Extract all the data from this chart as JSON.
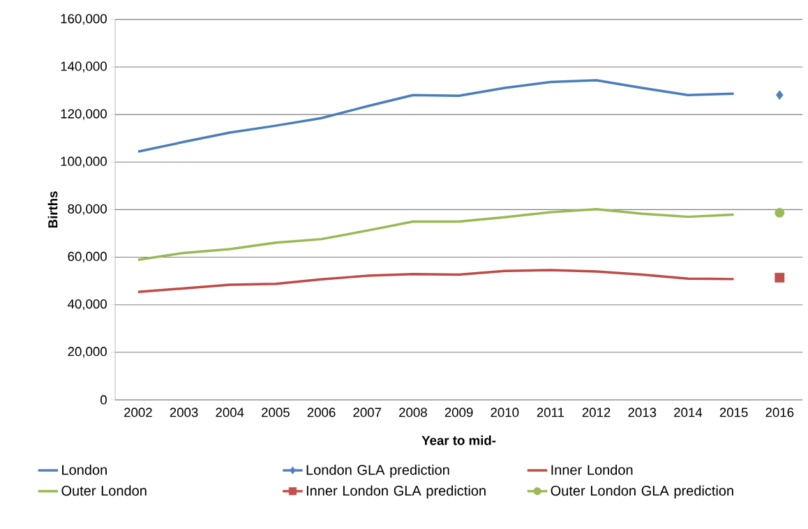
{
  "chart_data": {
    "type": "line",
    "xlabel": "Year to mid-",
    "ylabel": "Births",
    "categories": [
      "2002",
      "2003",
      "2004",
      "2005",
      "2006",
      "2007",
      "2008",
      "2009",
      "2010",
      "2011",
      "2012",
      "2013",
      "2014",
      "2015",
      "2016"
    ],
    "series": [
      {
        "name": "London",
        "color": "#4a7ebb",
        "values": [
          104400,
          108500,
          112400,
          115300,
          118500,
          123500,
          128200,
          127900,
          131200,
          133700,
          134400,
          131200,
          128200,
          128800,
          null
        ]
      },
      {
        "name": "London GLA prediction",
        "type": "scatter",
        "marker": "diamond",
        "color": "#4f81bd",
        "values": [
          null,
          null,
          null,
          null,
          null,
          null,
          null,
          null,
          null,
          null,
          null,
          null,
          null,
          null,
          128200
        ]
      },
      {
        "name": "Inner London",
        "color": "#be4b48",
        "values": [
          45400,
          46900,
          48400,
          48800,
          50700,
          52200,
          52900,
          52700,
          54200,
          54600,
          54000,
          52700,
          51000,
          50800,
          null
        ]
      },
      {
        "name": "Outer London",
        "color": "#98b954",
        "values": [
          58900,
          61800,
          63400,
          66100,
          67600,
          71200,
          75000,
          75000,
          76800,
          78900,
          80200,
          78300,
          77000,
          77900,
          null
        ]
      },
      {
        "name": "Inner London GLA prediction",
        "type": "scatter",
        "marker": "square",
        "color": "#c0504d",
        "values": [
          null,
          null,
          null,
          null,
          null,
          null,
          null,
          null,
          null,
          null,
          null,
          null,
          null,
          null,
          51400
        ]
      },
      {
        "name": "Outer London GLA prediction",
        "type": "scatter",
        "marker": "circle",
        "color": "#9bbb59",
        "values": [
          null,
          null,
          null,
          null,
          null,
          null,
          null,
          null,
          null,
          null,
          null,
          null,
          null,
          null,
          78700
        ]
      }
    ],
    "ylim": [
      0,
      160000
    ],
    "yticks": [
      0,
      {
        "value": 20000,
        "label": "20,000"
      },
      {
        "value": 40000,
        "label": "40,000"
      },
      {
        "value": 60000,
        "label": "60,000"
      },
      {
        "value": 80000,
        "label": "80,000"
      },
      {
        "value": 100000,
        "label": "100,000"
      },
      {
        "value": 120000,
        "label": "120,000"
      },
      {
        "value": 140000,
        "label": "140,000"
      },
      {
        "value": 160000,
        "label": "160,000"
      }
    ],
    "grid": "y",
    "legend": "bottom"
  }
}
